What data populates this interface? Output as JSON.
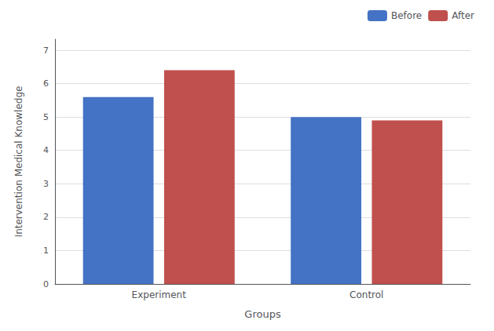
{
  "chart_data": {
    "type": "bar",
    "categories": [
      "Experiment",
      "Control"
    ],
    "series": [
      {
        "name": "Before",
        "color": "#4472C4",
        "values": [
          5.6,
          5.0
        ]
      },
      {
        "name": "After",
        "color": "#C0504D",
        "values": [
          6.4,
          4.9
        ]
      }
    ],
    "xlabel": "Groups",
    "ylabel": "Intervention Medical Knowledge",
    "ylim": [
      0,
      7.33
    ],
    "yticks": [
      0,
      1,
      2,
      3,
      4,
      5,
      6,
      7
    ],
    "grid": true,
    "legend": "upper right"
  }
}
